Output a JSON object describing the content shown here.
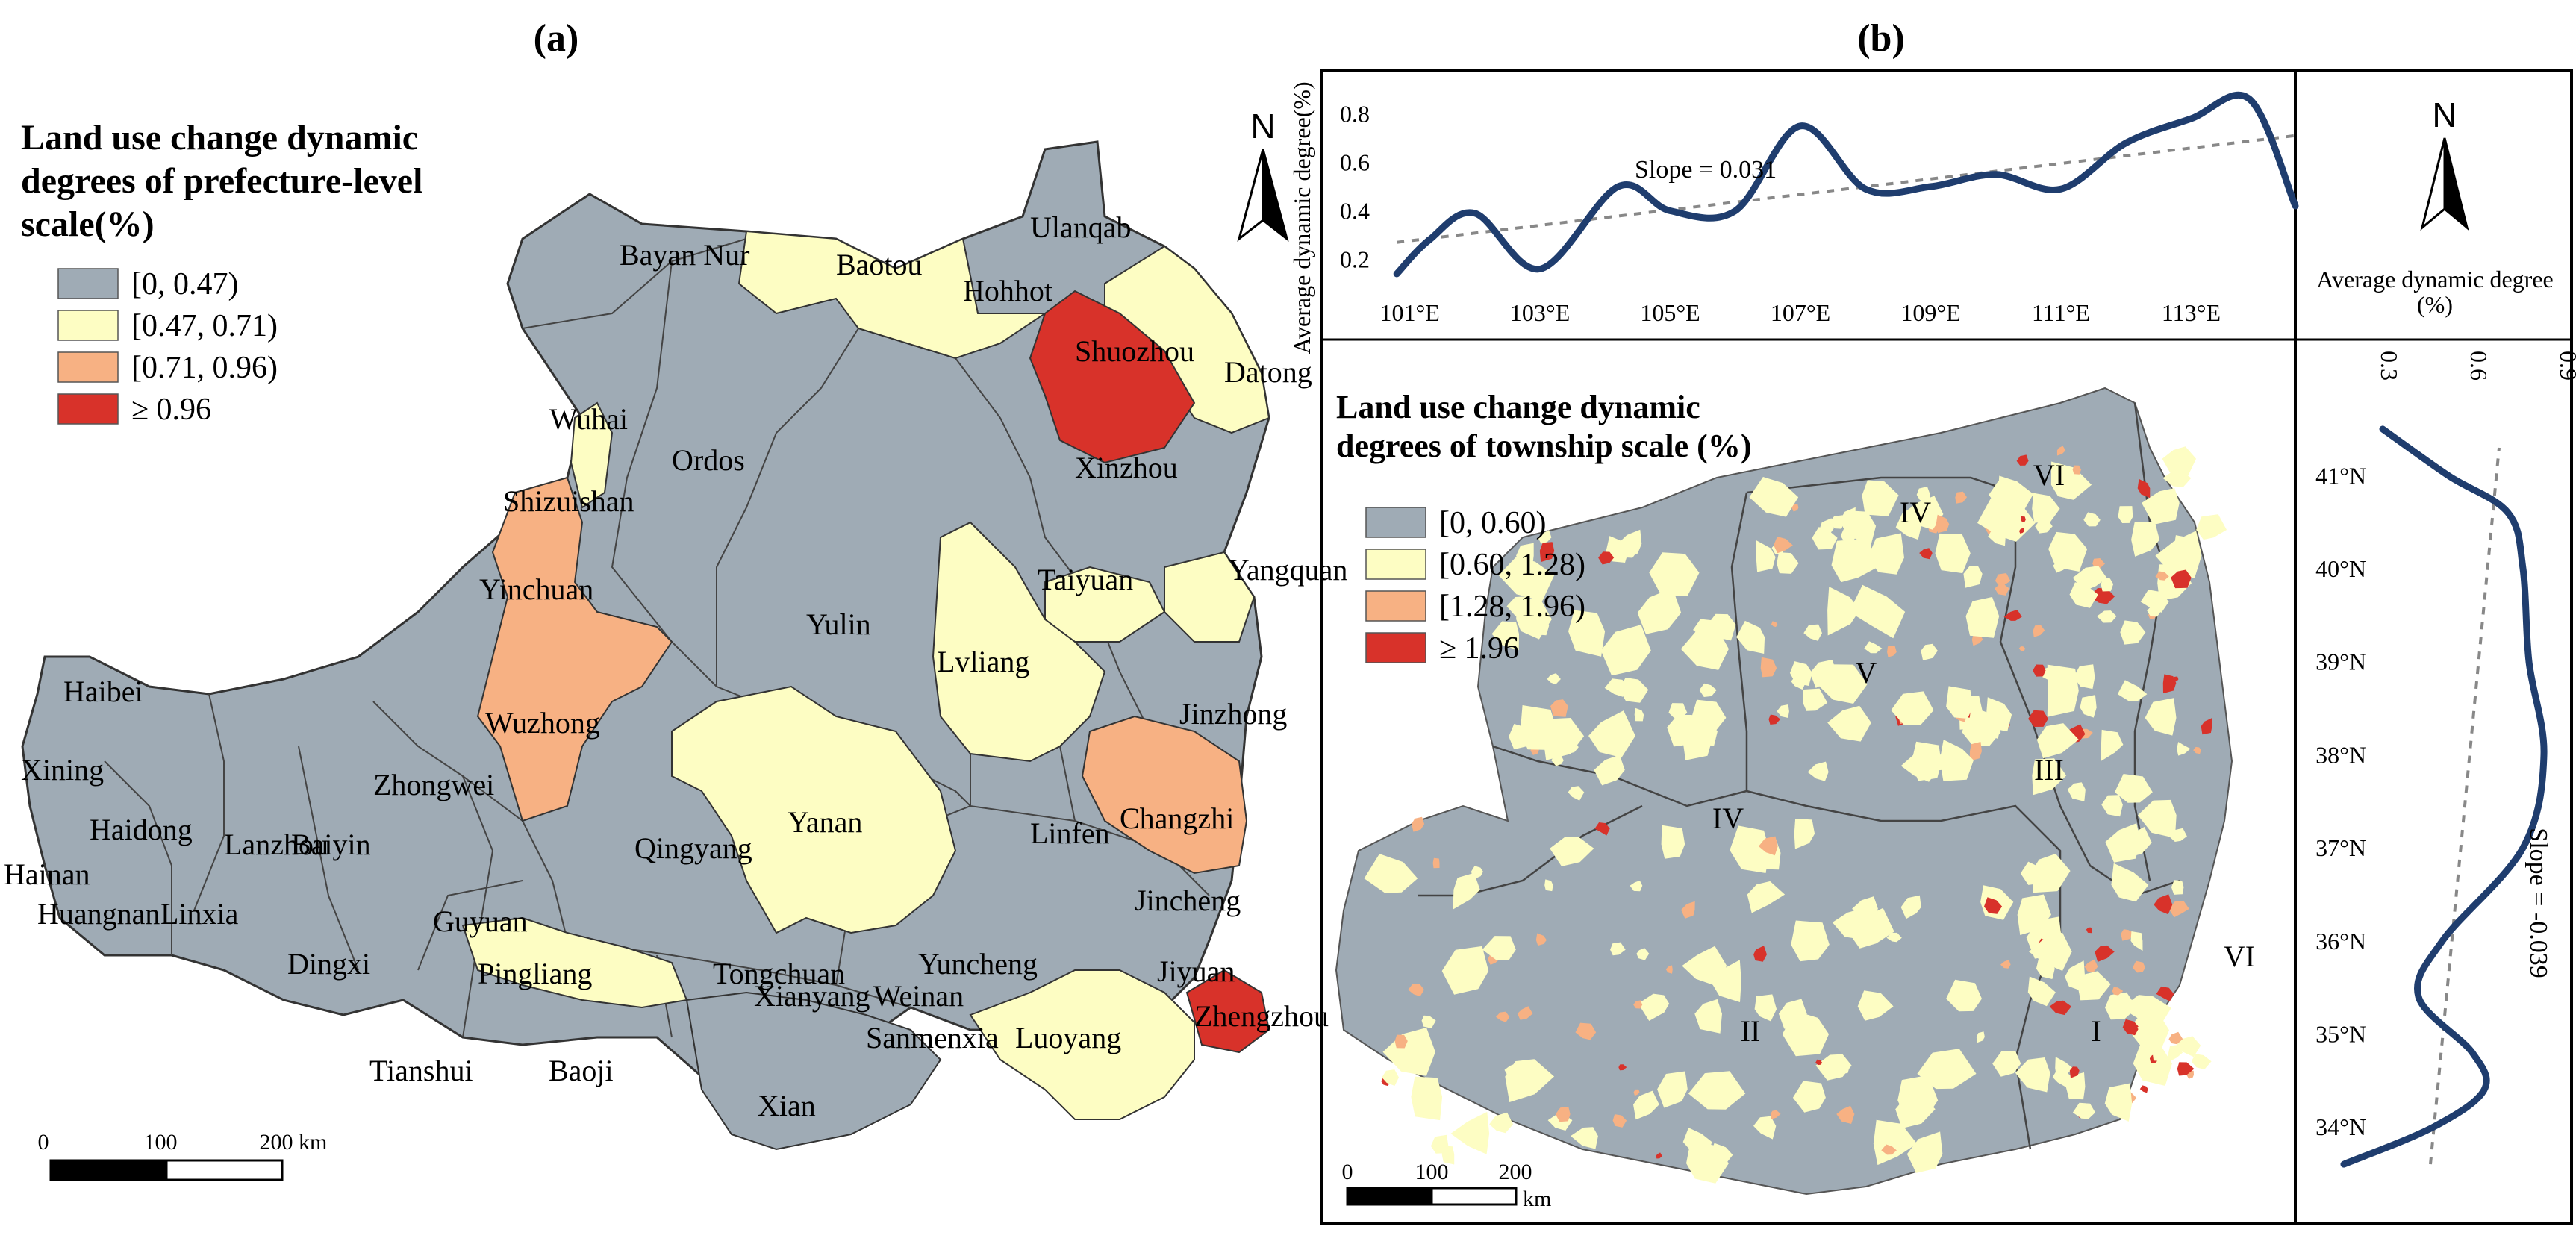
{
  "panels": {
    "a": {
      "label": "(a)",
      "legend": {
        "title_lines": [
          "Land use change dynamic",
          "degrees of prefecture-level",
          " scale(%)"
        ],
        "items": [
          {
            "label": "[0, 0.47)",
            "color": "#9fabb5"
          },
          {
            "label": "[0.47, 0.71)",
            "color": "#fdfdc3"
          },
          {
            "label": "[0.71, 0.96)",
            "color": "#f7b183"
          },
          {
            "label": "≥ 0.96",
            "color": "#d8322a"
          }
        ]
      },
      "regions": [
        "Bayan Nur",
        "Baotou",
        "Ulanqab",
        "Hohhot",
        "Datong",
        "Shuozhou",
        "Wuhai",
        "Ordos",
        "Shizuishan",
        "Xinzhou",
        "Yinchuan",
        "Yangquan",
        "Taiyuan",
        "Yulin",
        "Lvliang",
        "Haibei",
        "Wuzhong",
        "Jinzhong",
        "Zhongwei",
        "Xining",
        "Baiyin",
        "Haidong",
        "Lanzhou",
        "Changzhi",
        "Yanan",
        "Linfen",
        "Hainan",
        "Qingyang",
        "Huangnan",
        "Linxia",
        "Guyuan",
        "Jincheng",
        "Dingxi",
        "Pingliang",
        "Tongchuan",
        "Yuncheng",
        "Jiyuan",
        "Xianyang",
        "Weinan",
        "Zhengzhou",
        "Tianshui",
        "Baoji",
        "Sanmenxia",
        "Luoyang",
        "Xian"
      ],
      "scale_bar": {
        "ticks": [
          "0",
          "100",
          "200"
        ],
        "unit": "km"
      }
    },
    "b": {
      "label": "(b)",
      "legend": {
        "title_lines": [
          "Land use change dynamic",
          "degrees of township scale (%)"
        ],
        "items": [
          {
            "label": "[0, 0.60)",
            "color": "#9fabb5"
          },
          {
            "label": "[0.60, 1.28)",
            "color": "#fdfdc3"
          },
          {
            "label": "[1.28, 1.96)",
            "color": "#f7b183"
          },
          {
            "label": "≥ 1.96",
            "color": "#d8322a"
          }
        ]
      },
      "zones": [
        "I",
        "II",
        "III",
        "IV",
        "IV",
        "V",
        "VI",
        "VI"
      ],
      "scale_bar": {
        "ticks": [
          "0",
          "100",
          "200"
        ],
        "unit": "km"
      },
      "north_label": "N"
    }
  },
  "chart_data": [
    {
      "type": "line",
      "orientation": "longitude profile",
      "ylabel": "Average dynamic degree(%)",
      "x_ticks": [
        "101°E",
        "103°E",
        "105°E",
        "107°E",
        "109°E",
        "111°E",
        "113°E"
      ],
      "y_ticks": [
        "0.2",
        "0.4",
        "0.6",
        "0.8"
      ],
      "annotation": "Slope = 0.031",
      "xlim": [
        100.5,
        114.6
      ],
      "ylim": [
        0.1,
        0.9
      ],
      "x": [
        100.8,
        101.3,
        102.0,
        103.0,
        104.2,
        105.0,
        106.0,
        107.0,
        108.0,
        109.0,
        110.0,
        111.0,
        112.0,
        113.0,
        113.9,
        114.6
      ],
      "y": [
        0.14,
        0.28,
        0.39,
        0.16,
        0.5,
        0.4,
        0.4,
        0.75,
        0.49,
        0.5,
        0.55,
        0.49,
        0.68,
        0.78,
        0.86,
        0.42
      ],
      "trend": {
        "x": [
          100.8,
          114.6
        ],
        "y": [
          0.27,
          0.71
        ]
      }
    },
    {
      "type": "line",
      "orientation": "latitude profile",
      "xlabel_lines": [
        "Average dynamic degree",
        "(%)"
      ],
      "x_ticks": [
        "0.3",
        "0.6",
        "0.9"
      ],
      "y_ticks": [
        "41°N",
        "40°N",
        "39°N",
        "38°N",
        "37°N",
        "36°N",
        "35°N",
        "34°N"
      ],
      "annotation": "Slope = -0.039",
      "xlim": [
        0.3,
        0.9
      ],
      "ylim": [
        33.4,
        41.7
      ],
      "lat": [
        41.5,
        41.0,
        40.6,
        40.0,
        39.0,
        38.0,
        37.0,
        36.0,
        35.4,
        34.8,
        34.4,
        34.0,
        33.6
      ],
      "value": [
        0.33,
        0.55,
        0.75,
        0.8,
        0.82,
        0.87,
        0.8,
        0.53,
        0.45,
        0.63,
        0.67,
        0.5,
        0.2
      ],
      "trend": {
        "lat": [
          33.6,
          41.3
        ],
        "value": [
          0.49,
          0.72
        ]
      }
    }
  ]
}
